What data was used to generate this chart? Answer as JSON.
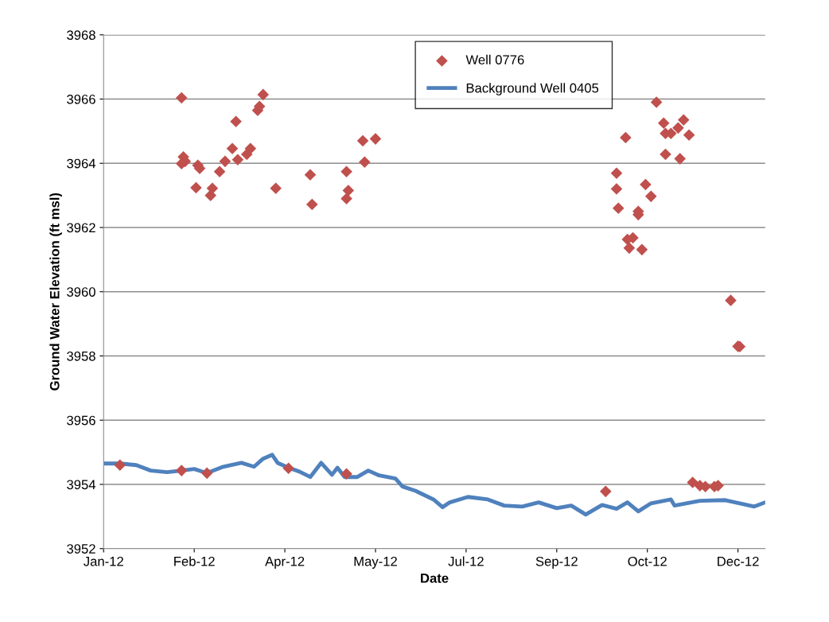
{
  "chart_data": {
    "type": "scatter",
    "xlabel": "Date",
    "ylabel": "Ground Water Elevation (ft msl)",
    "xlim": [
      "2012-01-01",
      "2012-12-31"
    ],
    "xticks": [
      {
        "value": "2012-01-01",
        "label": "Jan-12"
      },
      {
        "value": "2012-02-20",
        "label": "Feb-12"
      },
      {
        "value": "2012-04-10",
        "label": "Apr-12"
      },
      {
        "value": "2012-05-30",
        "label": "May-12"
      },
      {
        "value": "2012-07-19",
        "label": "Jul-12"
      },
      {
        "value": "2012-09-07",
        "label": "Sep-12"
      },
      {
        "value": "2012-10-27",
        "label": "Oct-12"
      },
      {
        "value": "2012-12-16",
        "label": "Dec-12"
      }
    ],
    "ylim": [
      3952,
      3968
    ],
    "yticks": [
      3952,
      3954,
      3956,
      3958,
      3960,
      3962,
      3964,
      3966,
      3968
    ],
    "grid": "y",
    "legend": "top",
    "series": [
      {
        "name": "Well 0776",
        "marker": "diamond",
        "color": "#c0504d",
        "x": [
          "2012-01-10",
          "2012-02-13",
          "2012-02-13",
          "2012-02-14",
          "2012-02-15",
          "2012-02-13",
          "2012-02-21",
          "2012-02-22",
          "2012-02-23",
          "2012-02-27",
          "2012-02-29",
          "2012-03-01",
          "2012-03-05",
          "2012-03-08",
          "2012-03-12",
          "2012-03-14",
          "2012-03-15",
          "2012-03-20",
          "2012-03-22",
          "2012-03-26",
          "2012-03-27",
          "2012-03-29",
          "2012-04-05",
          "2012-04-12",
          "2012-04-24",
          "2012-04-25",
          "2012-05-14",
          "2012-05-14",
          "2012-05-14",
          "2012-05-15",
          "2012-05-23",
          "2012-05-24",
          "2012-05-30",
          "2012-10-04",
          "2012-10-10",
          "2012-10-10",
          "2012-10-11",
          "2012-10-15",
          "2012-10-16",
          "2012-10-17",
          "2012-10-19",
          "2012-10-22",
          "2012-10-22",
          "2012-10-24",
          "2012-10-26",
          "2012-10-29",
          "2012-11-01",
          "2012-11-05",
          "2012-11-06",
          "2012-11-06",
          "2012-11-09",
          "2012-11-13",
          "2012-11-14",
          "2012-11-16",
          "2012-11-19",
          "2012-11-21",
          "2012-11-25",
          "2012-11-28",
          "2012-12-03",
          "2012-12-05",
          "2012-12-12",
          "2012-12-16",
          "2012-12-17"
        ],
        "values": [
          3954.6,
          3954.43,
          3966.04,
          3964.2,
          3964.06,
          3963.99,
          3963.24,
          3963.94,
          3963.84,
          3954.35,
          3963.0,
          3963.22,
          3963.74,
          3964.06,
          3964.46,
          3965.3,
          3964.11,
          3964.28,
          3964.46,
          3965.65,
          3965.77,
          3966.14,
          3963.22,
          3954.5,
          3963.64,
          3962.72,
          3963.74,
          3962.9,
          3954.33,
          3963.15,
          3964.7,
          3964.04,
          3964.76,
          3953.78,
          3963.69,
          3963.2,
          3962.6,
          3964.8,
          3961.63,
          3961.36,
          3961.68,
          3962.4,
          3962.5,
          3961.31,
          3963.34,
          3962.97,
          3965.9,
          3965.25,
          3964.28,
          3964.93,
          3964.93,
          3965.1,
          3964.14,
          3965.35,
          3964.88,
          3954.06,
          3953.96,
          3953.93,
          3953.93,
          3953.96,
          3959.73,
          3958.3,
          3958.29
        ]
      },
      {
        "name": "Background Well 0405",
        "type": "line",
        "marker": "none",
        "line_style": "solid",
        "color": "#4f81bd",
        "x": [
          "2012-01-01",
          "2012-01-10",
          "2012-01-19",
          "2012-01-27",
          "2012-02-05",
          "2012-02-13",
          "2012-02-20",
          "2012-02-27",
          "2012-03-07",
          "2012-03-17",
          "2012-03-24",
          "2012-03-29",
          "2012-04-03",
          "2012-04-06",
          "2012-04-12",
          "2012-04-18",
          "2012-04-24",
          "2012-04-30",
          "2012-05-06",
          "2012-05-09",
          "2012-05-13",
          "2012-05-20",
          "2012-05-26",
          "2012-06-01",
          "2012-06-10",
          "2012-06-14",
          "2012-06-21",
          "2012-07-01",
          "2012-07-06",
          "2012-07-10",
          "2012-07-20",
          "2012-07-31",
          "2012-08-09",
          "2012-08-19",
          "2012-08-28",
          "2012-09-07",
          "2012-09-15",
          "2012-09-23",
          "2012-10-02",
          "2012-10-10",
          "2012-10-16",
          "2012-10-22",
          "2012-10-29",
          "2012-11-09",
          "2012-11-11",
          "2012-11-25",
          "2012-12-09",
          "2012-12-25",
          "2012-12-31"
        ],
        "values": [
          3954.65,
          3954.65,
          3954.6,
          3954.43,
          3954.38,
          3954.43,
          3954.48,
          3954.35,
          3954.55,
          3954.67,
          3954.55,
          3954.8,
          3954.92,
          3954.67,
          3954.52,
          3954.4,
          3954.23,
          3954.67,
          3954.3,
          3954.52,
          3954.23,
          3954.23,
          3954.43,
          3954.28,
          3954.18,
          3953.93,
          3953.8,
          3953.53,
          3953.29,
          3953.44,
          3953.61,
          3953.53,
          3953.34,
          3953.31,
          3953.44,
          3953.26,
          3953.34,
          3953.06,
          3953.36,
          3953.24,
          3953.44,
          3953.16,
          3953.41,
          3953.53,
          3953.34,
          3953.49,
          3953.51,
          3953.31,
          3953.44
        ]
      }
    ]
  }
}
